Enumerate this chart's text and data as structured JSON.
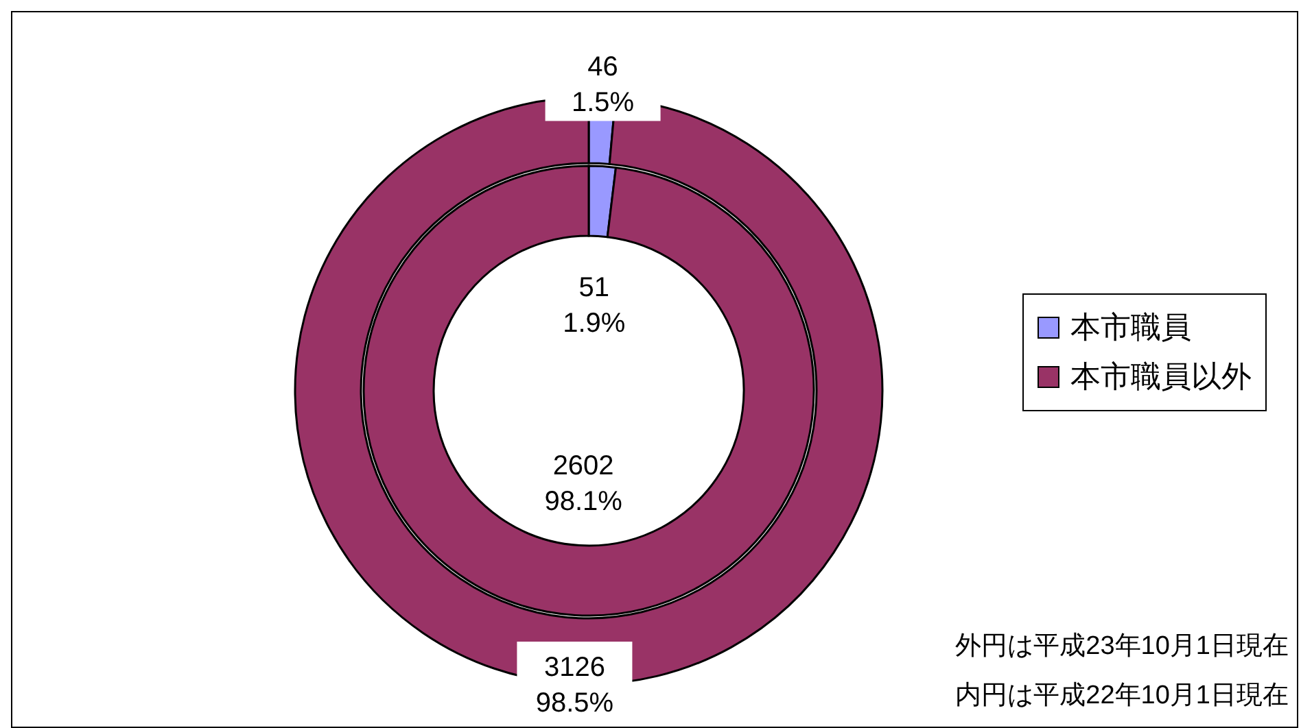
{
  "chart_data": {
    "type": "donut",
    "categories": [
      "本市職員",
      "本市職員以外"
    ],
    "series": [
      {
        "values": [
          46,
          3126
        ],
        "colors": [
          "#9999ff",
          "#993366"
        ],
        "value_labels": [
          "46\n1.5%",
          "3126\n98.5%"
        ]
      },
      {
        "values": [
          51,
          2602
        ],
        "colors": [
          "#9999ff",
          "#993366"
        ],
        "value_labels": [
          "51\n1.9%",
          "2602\n98.1%"
        ]
      }
    ],
    "colors": [
      "#9999ff",
      "#993366"
    ],
    "legend": "right",
    "annotations": [
      "外円は平成23年10月1日現在",
      "内円は平成22年10月1日現在"
    ]
  }
}
